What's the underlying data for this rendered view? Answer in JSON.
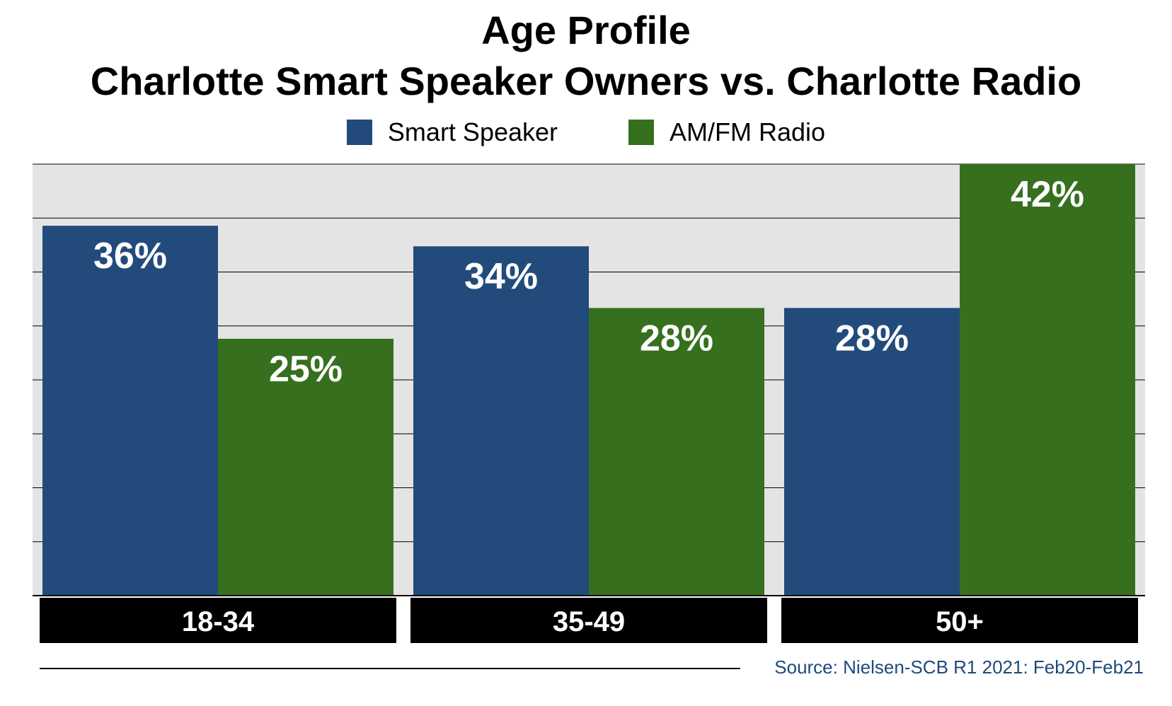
{
  "chart_data": {
    "type": "bar",
    "title": "Age Profile",
    "subtitle": "Charlotte Smart Speaker Owners vs. Charlotte Radio",
    "categories": [
      "18-34",
      "35-49",
      "50+"
    ],
    "series": [
      {
        "name": "Smart Speaker",
        "values": [
          36,
          34,
          28
        ],
        "labels": [
          "36%",
          "34%",
          "28%"
        ],
        "color": "#224b7c"
      },
      {
        "name": "AM/FM Radio",
        "values": [
          25,
          28,
          42
        ],
        "labels": [
          "25%",
          "28%",
          "42%"
        ],
        "color": "#36701f"
      }
    ],
    "ylim": [
      0,
      42
    ],
    "grid": true,
    "legend": "top",
    "source": "Source: Nielsen-SCB R1 2021: Feb20-Feb21"
  }
}
